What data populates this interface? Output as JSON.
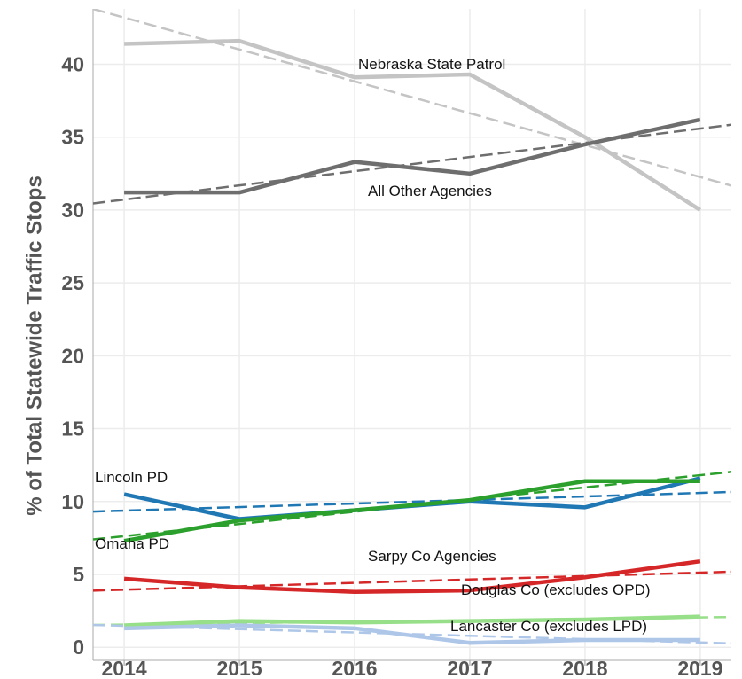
{
  "chart_data": {
    "type": "line",
    "ylabel": "% of Total Statewide Traffic Stops",
    "x": [
      2014,
      2015,
      2016,
      2017,
      2018,
      2019
    ],
    "xlim": [
      2013.73,
      2019.27
    ],
    "xticks": [
      2014,
      2015,
      2016,
      2017,
      2018,
      2019
    ],
    "ylim": [
      -0.9,
      43.8
    ],
    "yticks": [
      0,
      5,
      10,
      15,
      20,
      25,
      30,
      35,
      40
    ],
    "grid": true,
    "trend_lines": true,
    "series": [
      {
        "name": "Nebraska State Patrol",
        "color": "#c4c4c4",
        "values": [
          41.4,
          41.6,
          39.1,
          39.3,
          35.0,
          30.0
        ]
      },
      {
        "name": "All Other Agencies",
        "color": "#6e6e6e",
        "values": [
          31.2,
          31.2,
          33.3,
          32.5,
          34.5,
          36.2
        ]
      },
      {
        "name": "Lincoln PD",
        "color": "#1f77b4",
        "values": [
          10.5,
          8.8,
          9.4,
          10.0,
          9.6,
          11.6
        ]
      },
      {
        "name": "Omaha PD",
        "color": "#2ca02c",
        "values": [
          7.3,
          8.7,
          9.4,
          10.1,
          11.4,
          11.4
        ]
      },
      {
        "name": "Sarpy Co Agencies",
        "color": "#d62728",
        "values": [
          4.7,
          4.1,
          3.8,
          3.9,
          4.8,
          5.9
        ]
      },
      {
        "name": "Douglas Co (excludes OPD)",
        "color": "#98df8a",
        "values": [
          1.5,
          1.8,
          1.7,
          1.8,
          1.9,
          2.1
        ]
      },
      {
        "name": "Lancaster Co (excludes LPD)",
        "color": "#aec7e8",
        "values": [
          1.3,
          1.5,
          1.3,
          0.3,
          0.5,
          0.5
        ]
      }
    ]
  }
}
